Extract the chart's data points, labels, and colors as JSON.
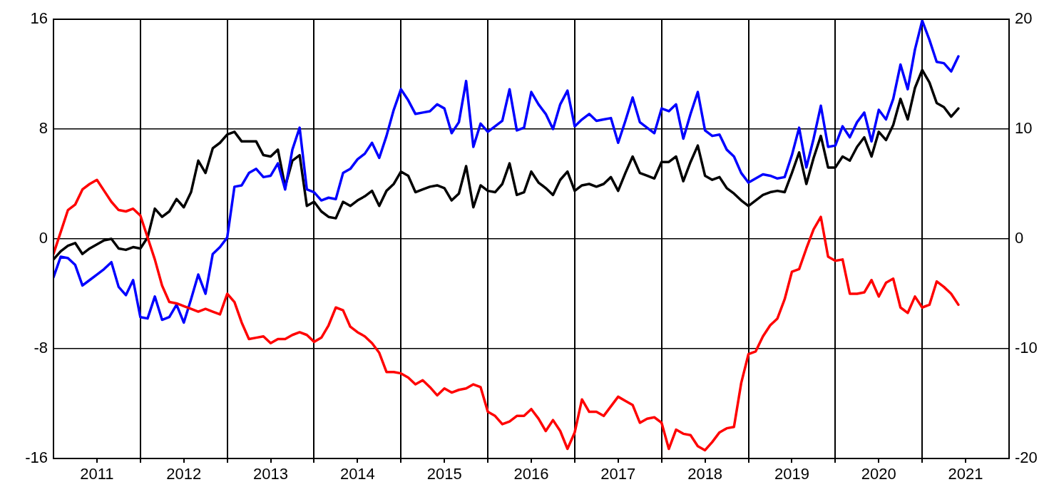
{
  "chart_data": {
    "type": "line",
    "x": [
      "2011-01",
      "2011-02",
      "2011-03",
      "2011-04",
      "2011-05",
      "2011-06",
      "2011-07",
      "2011-08",
      "2011-09",
      "2011-10",
      "2011-11",
      "2011-12",
      "2012-01",
      "2012-02",
      "2012-03",
      "2012-04",
      "2012-05",
      "2012-06",
      "2012-07",
      "2012-08",
      "2012-09",
      "2012-10",
      "2012-11",
      "2012-12",
      "2013-01",
      "2013-02",
      "2013-03",
      "2013-04",
      "2013-05",
      "2013-06",
      "2013-07",
      "2013-08",
      "2013-09",
      "2013-10",
      "2013-11",
      "2013-12",
      "2014-01",
      "2014-02",
      "2014-03",
      "2014-04",
      "2014-05",
      "2014-06",
      "2014-07",
      "2014-08",
      "2014-09",
      "2014-10",
      "2014-11",
      "2014-12",
      "2015-01",
      "2015-02",
      "2015-03",
      "2015-04",
      "2015-05",
      "2015-06",
      "2015-07",
      "2015-08",
      "2015-09",
      "2015-10",
      "2015-11",
      "2015-12",
      "2016-01",
      "2016-02",
      "2016-03",
      "2016-04",
      "2016-05",
      "2016-06",
      "2016-07",
      "2016-08",
      "2016-09",
      "2016-10",
      "2016-11",
      "2016-12",
      "2017-01",
      "2017-02",
      "2017-03",
      "2017-04",
      "2017-05",
      "2017-06",
      "2017-07",
      "2017-08",
      "2017-09",
      "2017-10",
      "2017-11",
      "2017-12",
      "2018-01",
      "2018-02",
      "2018-03",
      "2018-04",
      "2018-05",
      "2018-06",
      "2018-07",
      "2018-08",
      "2018-09",
      "2018-10",
      "2018-11",
      "2018-12",
      "2019-01",
      "2019-02",
      "2019-03",
      "2019-04",
      "2019-05",
      "2019-06",
      "2019-07",
      "2019-08",
      "2019-09",
      "2019-10",
      "2019-11",
      "2019-12",
      "2020-01",
      "2020-02",
      "2020-03",
      "2020-04",
      "2020-05",
      "2020-06",
      "2020-07",
      "2020-08",
      "2020-09",
      "2020-10",
      "2020-11",
      "2020-12",
      "2021-01",
      "2021-02",
      "2021-03",
      "2021-04",
      "2021-05",
      "2021-06"
    ],
    "series": [
      {
        "color": "#ff0000",
        "values": [
          -1.1,
          0.5,
          2.1,
          2.5,
          3.6,
          4.0,
          4.3,
          3.5,
          2.7,
          2.1,
          2.0,
          2.2,
          1.7,
          0.1,
          -1.5,
          -3.4,
          -4.6,
          -4.7,
          -4.9,
          -5.1,
          -5.3,
          -5.1,
          -5.3,
          -5.5,
          -4.0,
          -4.6,
          -6.1,
          -7.3,
          -7.2,
          -7.1,
          -7.6,
          -7.3,
          -7.3,
          -7.0,
          -6.8,
          -7.0,
          -7.5,
          -7.2,
          -6.3,
          -5.0,
          -5.2,
          -6.4,
          -6.8,
          -7.1,
          -7.6,
          -8.3,
          -9.7,
          -9.7,
          -9.8,
          -10.1,
          -10.6,
          -10.3,
          -10.8,
          -11.4,
          -10.9,
          -11.2,
          -11.0,
          -10.9,
          -10.6,
          -10.8,
          -12.6,
          -12.9,
          -13.5,
          -13.3,
          -12.9,
          -12.9,
          -12.4,
          -13.1,
          -14.0,
          -13.2,
          -14.0,
          -15.3,
          -14.1,
          -11.7,
          -12.6,
          -12.6,
          -12.9,
          -12.2,
          -11.5,
          -11.8,
          -12.1,
          -13.4,
          -13.1,
          -13.0,
          -13.4,
          -15.3,
          -13.9,
          -14.2,
          -14.3,
          -15.1,
          -15.4,
          -14.8,
          -14.1,
          -13.8,
          -13.7,
          -10.5,
          -8.4,
          -8.2,
          -7.1,
          -6.3,
          -5.8,
          -4.4,
          -2.4,
          -2.2,
          -0.7,
          0.7,
          1.6,
          -1.3,
          -1.6,
          -1.5,
          -4.0,
          -4.0,
          -3.9,
          -3.0,
          -4.2,
          -3.2,
          -2.9,
          -5.0,
          -5.4,
          -4.2,
          -5.0,
          -4.8,
          -3.1,
          -3.5,
          -4.0,
          -4.8
        ]
      },
      {
        "color": "#0000ff",
        "values": [
          -2.8,
          -1.3,
          -1.4,
          -1.9,
          -3.4,
          -3.0,
          -2.6,
          -2.2,
          -1.7,
          -3.5,
          -4.1,
          -3.0,
          -5.7,
          -5.8,
          -4.2,
          -5.9,
          -5.7,
          -4.8,
          -6.1,
          -4.4,
          -2.6,
          -4.0,
          -1.1,
          -0.6,
          0.1,
          3.8,
          3.9,
          4.8,
          5.1,
          4.5,
          4.6,
          5.5,
          3.6,
          6.5,
          8.1,
          3.6,
          3.4,
          2.8,
          3.0,
          2.9,
          4.8,
          5.1,
          5.8,
          6.2,
          7.0,
          5.9,
          7.5,
          9.4,
          10.9,
          10.1,
          9.1,
          9.2,
          9.3,
          9.8,
          9.5,
          7.7,
          8.5,
          11.5,
          6.7,
          8.4,
          7.8,
          8.2,
          8.6,
          10.9,
          7.9,
          8.1,
          10.7,
          9.8,
          9.1,
          8.0,
          9.8,
          10.8,
          8.2,
          8.7,
          9.1,
          8.6,
          8.7,
          8.8,
          7.0,
          8.6,
          10.3,
          8.5,
          8.1,
          7.7,
          9.5,
          9.3,
          9.8,
          7.3,
          9.1,
          10.7,
          7.9,
          7.5,
          7.6,
          6.5,
          6.0,
          4.8,
          4.1,
          4.4,
          4.7,
          4.6,
          4.4,
          4.5,
          6.1,
          8.1,
          5.2,
          7.3,
          9.7,
          6.7,
          6.8,
          8.2,
          7.4,
          8.5,
          9.2,
          7.1,
          9.4,
          8.7,
          10.2,
          12.7,
          10.9,
          13.8,
          15.9,
          14.5,
          12.9,
          12.8,
          12.2,
          13.3
        ]
      },
      {
        "color": "#000000",
        "values": [
          -1.5,
          -0.9,
          -0.5,
          -0.3,
          -1.1,
          -0.7,
          -0.4,
          -0.1,
          0.0,
          -0.7,
          -0.8,
          -0.6,
          -0.7,
          0.1,
          2.2,
          1.6,
          2.0,
          2.9,
          2.3,
          3.4,
          5.7,
          4.8,
          6.6,
          7.0,
          7.6,
          7.8,
          7.1,
          7.1,
          7.1,
          6.1,
          6.0,
          6.5,
          3.8,
          5.7,
          6.1,
          2.4,
          2.7,
          2.0,
          1.6,
          1.5,
          2.7,
          2.4,
          2.8,
          3.1,
          3.5,
          2.4,
          3.5,
          4.0,
          4.9,
          4.6,
          3.4,
          3.6,
          3.8,
          3.9,
          3.7,
          2.8,
          3.3,
          5.3,
          2.3,
          3.9,
          3.5,
          3.4,
          4.0,
          5.5,
          3.2,
          3.4,
          4.9,
          4.1,
          3.7,
          3.2,
          4.3,
          4.9,
          3.5,
          3.9,
          4.0,
          3.8,
          4.0,
          4.5,
          3.5,
          4.8,
          6.0,
          4.8,
          4.6,
          4.4,
          5.6,
          5.6,
          6.0,
          4.2,
          5.6,
          6.8,
          4.6,
          4.3,
          4.5,
          3.7,
          3.3,
          2.8,
          2.4,
          2.8,
          3.2,
          3.4,
          3.5,
          3.4,
          4.8,
          6.3,
          4.0,
          5.9,
          7.5,
          5.2,
          5.2,
          6.0,
          5.7,
          6.7,
          7.4,
          6.0,
          7.8,
          7.2,
          8.3,
          10.2,
          8.7,
          11.0,
          12.3,
          11.4,
          9.9,
          9.6,
          8.9,
          9.5
        ]
      }
    ],
    "xlim": [
      "2011-01",
      "2022-01"
    ],
    "xticks": [
      {
        "value": "2011-07",
        "label": "2011"
      },
      {
        "value": "2012-01",
        "label": null
      },
      {
        "value": "2012-07",
        "label": "2012"
      },
      {
        "value": "2013-01",
        "label": null
      },
      {
        "value": "2013-07",
        "label": "2013"
      },
      {
        "value": "2014-01",
        "label": null
      },
      {
        "value": "2014-07",
        "label": "2014"
      },
      {
        "value": "2015-01",
        "label": null
      },
      {
        "value": "2015-07",
        "label": "2015"
      },
      {
        "value": "2016-01",
        "label": null
      },
      {
        "value": "2016-07",
        "label": "2016"
      },
      {
        "value": "2017-01",
        "label": null
      },
      {
        "value": "2017-07",
        "label": "2017"
      },
      {
        "value": "2018-01",
        "label": null
      },
      {
        "value": "2018-07",
        "label": "2018"
      },
      {
        "value": "2019-01",
        "label": null
      },
      {
        "value": "2019-07",
        "label": "2019"
      },
      {
        "value": "2020-01",
        "label": null
      },
      {
        "value": "2020-07",
        "label": "2020"
      },
      {
        "value": "2021-01",
        "label": null
      },
      {
        "value": "2021-07",
        "label": "2021"
      }
    ],
    "ylim": [
      -16,
      16
    ],
    "yticks": [
      -16,
      -8,
      0,
      8,
      16
    ],
    "y2lim": [
      -20,
      20
    ],
    "y2ticks": [
      -20,
      -10,
      0,
      10,
      20
    ],
    "grid": true,
    "legend": false,
    "marker": "none",
    "line_style": "solid"
  }
}
